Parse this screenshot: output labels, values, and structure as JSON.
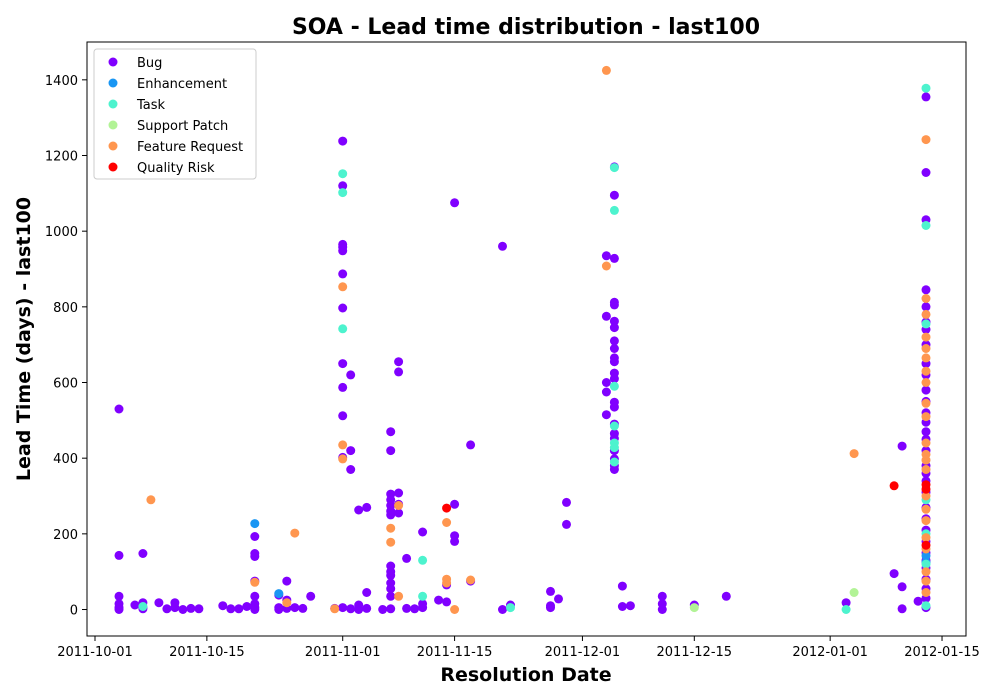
{
  "chart_data": {
    "type": "scatter",
    "title": "SOA - Lead time distribution - last100",
    "xlabel": "Resolution Date",
    "ylabel": "Lead Time (days) - last100",
    "x_type": "date",
    "xlim": [
      "2011-09-30",
      "2012-01-18"
    ],
    "ylim": [
      -70,
      1500
    ],
    "x_ticks": [
      "2011-10-01",
      "2011-10-15",
      "2011-11-01",
      "2011-11-15",
      "2011-12-01",
      "2011-12-15",
      "2012-01-01",
      "2012-01-15"
    ],
    "y_ticks": [
      0,
      200,
      400,
      600,
      800,
      1000,
      1200,
      1400
    ],
    "legend_position": "upper-left",
    "grid": false,
    "series": [
      {
        "name": "Bug",
        "color": "#8000ff",
        "points": [
          [
            "2011-10-04",
            530
          ],
          [
            "2011-10-04",
            143
          ],
          [
            "2011-10-04",
            35
          ],
          [
            "2011-10-04",
            15
          ],
          [
            "2011-10-04",
            5
          ],
          [
            "2011-10-04",
            0
          ],
          [
            "2011-10-06",
            12
          ],
          [
            "2011-10-07",
            148
          ],
          [
            "2011-10-07",
            18
          ],
          [
            "2011-10-07",
            5
          ],
          [
            "2011-10-07",
            2
          ],
          [
            "2011-10-09",
            18
          ],
          [
            "2011-10-10",
            2
          ],
          [
            "2011-10-11",
            18
          ],
          [
            "2011-10-11",
            5
          ],
          [
            "2011-10-12",
            0
          ],
          [
            "2011-10-13",
            3
          ],
          [
            "2011-10-14",
            2
          ],
          [
            "2011-10-17",
            10
          ],
          [
            "2011-10-18",
            2
          ],
          [
            "2011-10-19",
            2
          ],
          [
            "2011-10-20",
            8
          ],
          [
            "2011-10-21",
            193
          ],
          [
            "2011-10-21",
            148
          ],
          [
            "2011-10-21",
            140
          ],
          [
            "2011-10-21",
            75
          ],
          [
            "2011-10-21",
            35
          ],
          [
            "2011-10-21",
            15
          ],
          [
            "2011-10-21",
            5
          ],
          [
            "2011-10-21",
            0
          ],
          [
            "2011-10-24",
            38
          ],
          [
            "2011-10-24",
            5
          ],
          [
            "2011-10-24",
            0
          ],
          [
            "2011-10-25",
            75
          ],
          [
            "2011-10-25",
            25
          ],
          [
            "2011-10-25",
            3
          ],
          [
            "2011-10-26",
            5
          ],
          [
            "2011-10-27",
            3
          ],
          [
            "2011-10-28",
            35
          ],
          [
            "2011-10-31",
            3
          ],
          [
            "2011-11-01",
            5
          ],
          [
            "2011-11-01",
            1238
          ],
          [
            "2011-11-01",
            1120
          ],
          [
            "2011-11-01",
            965
          ],
          [
            "2011-11-01",
            958
          ],
          [
            "2011-11-01",
            948
          ],
          [
            "2011-11-01",
            887
          ],
          [
            "2011-11-01",
            797
          ],
          [
            "2011-11-01",
            650
          ],
          [
            "2011-11-01",
            587
          ],
          [
            "2011-11-01",
            512
          ],
          [
            "2011-11-01",
            402
          ],
          [
            "2011-11-02",
            420
          ],
          [
            "2011-11-02",
            620
          ],
          [
            "2011-11-02",
            370
          ],
          [
            "2011-11-02",
            2
          ],
          [
            "2011-11-03",
            263
          ],
          [
            "2011-11-03",
            12
          ],
          [
            "2011-11-03",
            0
          ],
          [
            "2011-11-04",
            270
          ],
          [
            "2011-11-04",
            3
          ],
          [
            "2011-11-04",
            45
          ],
          [
            "2011-11-06",
            0
          ],
          [
            "2011-11-07",
            470
          ],
          [
            "2011-11-07",
            420
          ],
          [
            "2011-11-07",
            305
          ],
          [
            "2011-11-07",
            290
          ],
          [
            "2011-11-07",
            275
          ],
          [
            "2011-11-07",
            260
          ],
          [
            "2011-11-07",
            250
          ],
          [
            "2011-11-07",
            115
          ],
          [
            "2011-11-07",
            100
          ],
          [
            "2011-11-07",
            90
          ],
          [
            "2011-11-07",
            70
          ],
          [
            "2011-11-07",
            55
          ],
          [
            "2011-11-07",
            35
          ],
          [
            "2011-11-07",
            2
          ],
          [
            "2011-11-08",
            308
          ],
          [
            "2011-11-08",
            255
          ],
          [
            "2011-11-08",
            655
          ],
          [
            "2011-11-08",
            628
          ],
          [
            "2011-11-08",
            278
          ],
          [
            "2011-11-09",
            135
          ],
          [
            "2011-11-09",
            3
          ],
          [
            "2011-11-10",
            2
          ],
          [
            "2011-11-11",
            15
          ],
          [
            "2011-11-11",
            5
          ],
          [
            "2011-11-11",
            205
          ],
          [
            "2011-11-13",
            25
          ],
          [
            "2011-11-14",
            20
          ],
          [
            "2011-11-14",
            65
          ],
          [
            "2011-11-15",
            1075
          ],
          [
            "2011-11-15",
            278
          ],
          [
            "2011-11-15",
            195
          ],
          [
            "2011-11-15",
            180
          ],
          [
            "2011-11-17",
            435
          ],
          [
            "2011-11-17",
            75
          ],
          [
            "2011-11-21",
            960
          ],
          [
            "2011-11-21",
            0
          ],
          [
            "2011-11-22",
            12
          ],
          [
            "2011-11-27",
            48
          ],
          [
            "2011-11-27",
            10
          ],
          [
            "2011-11-27",
            5
          ],
          [
            "2011-11-28",
            28
          ],
          [
            "2011-11-29",
            283
          ],
          [
            "2011-11-29",
            225
          ],
          [
            "2011-12-04",
            935
          ],
          [
            "2011-12-04",
            775
          ],
          [
            "2011-12-04",
            600
          ],
          [
            "2011-12-04",
            575
          ],
          [
            "2011-12-04",
            515
          ],
          [
            "2011-12-05",
            1170
          ],
          [
            "2011-12-05",
            1095
          ],
          [
            "2011-12-05",
            928
          ],
          [
            "2011-12-05",
            812
          ],
          [
            "2011-12-05",
            805
          ],
          [
            "2011-12-05",
            762
          ],
          [
            "2011-12-05",
            745
          ],
          [
            "2011-12-05",
            710
          ],
          [
            "2011-12-05",
            690
          ],
          [
            "2011-12-05",
            665
          ],
          [
            "2011-12-05",
            655
          ],
          [
            "2011-12-05",
            625
          ],
          [
            "2011-12-05",
            610
          ],
          [
            "2011-12-05",
            548
          ],
          [
            "2011-12-05",
            535
          ],
          [
            "2011-12-05",
            490
          ],
          [
            "2011-12-05",
            465
          ],
          [
            "2011-12-05",
            452
          ],
          [
            "2011-12-05",
            420
          ],
          [
            "2011-12-05",
            398
          ],
          [
            "2011-12-05",
            380
          ],
          [
            "2011-12-05",
            370
          ],
          [
            "2011-12-06",
            62
          ],
          [
            "2011-12-06",
            8
          ],
          [
            "2011-12-07",
            10
          ],
          [
            "2011-12-11",
            35
          ],
          [
            "2011-12-11",
            15
          ],
          [
            "2011-12-11",
            0
          ],
          [
            "2011-12-15",
            12
          ],
          [
            "2011-12-19",
            35
          ],
          [
            "2012-01-03",
            18
          ],
          [
            "2012-01-09",
            95
          ],
          [
            "2012-01-10",
            432
          ],
          [
            "2012-01-10",
            60
          ],
          [
            "2012-01-10",
            2
          ],
          [
            "2012-01-12",
            22
          ],
          [
            "2012-01-13",
            1355
          ],
          [
            "2012-01-13",
            1155
          ],
          [
            "2012-01-13",
            1030
          ],
          [
            "2012-01-13",
            845
          ],
          [
            "2012-01-13",
            800
          ],
          [
            "2012-01-13",
            760
          ],
          [
            "2012-01-13",
            740
          ],
          [
            "2012-01-13",
            700
          ],
          [
            "2012-01-13",
            650
          ],
          [
            "2012-01-13",
            620
          ],
          [
            "2012-01-13",
            580
          ],
          [
            "2012-01-13",
            550
          ],
          [
            "2012-01-13",
            520
          ],
          [
            "2012-01-13",
            495
          ],
          [
            "2012-01-13",
            470
          ],
          [
            "2012-01-13",
            450
          ],
          [
            "2012-01-13",
            420
          ],
          [
            "2012-01-13",
            380
          ],
          [
            "2012-01-13",
            360
          ],
          [
            "2012-01-13",
            340
          ],
          [
            "2012-01-13",
            310
          ],
          [
            "2012-01-13",
            270
          ],
          [
            "2012-01-13",
            240
          ],
          [
            "2012-01-13",
            210
          ],
          [
            "2012-01-13",
            180
          ],
          [
            "2012-01-13",
            150
          ],
          [
            "2012-01-13",
            130
          ],
          [
            "2012-01-13",
            110
          ],
          [
            "2012-01-13",
            80
          ],
          [
            "2012-01-13",
            55
          ],
          [
            "2012-01-13",
            30
          ],
          [
            "2012-01-13",
            5
          ]
        ]
      },
      {
        "name": "Enhancement",
        "color": "#1996f3",
        "points": [
          [
            "2011-10-21",
            227
          ],
          [
            "2011-10-24",
            42
          ],
          [
            "2012-01-13",
            142
          ],
          [
            "2012-01-13",
            125
          ]
        ]
      },
      {
        "name": "Task",
        "color": "#4df3ce",
        "points": [
          [
            "2011-10-07",
            8
          ],
          [
            "2011-11-01",
            1152
          ],
          [
            "2011-11-01",
            1102
          ],
          [
            "2011-11-01",
            742
          ],
          [
            "2011-11-11",
            130
          ],
          [
            "2011-11-11",
            35
          ],
          [
            "2011-11-22",
            5
          ],
          [
            "2011-12-05",
            1168
          ],
          [
            "2011-12-05",
            1055
          ],
          [
            "2011-12-05",
            590
          ],
          [
            "2011-12-05",
            485
          ],
          [
            "2011-12-05",
            440
          ],
          [
            "2011-12-05",
            428
          ],
          [
            "2011-12-05",
            390
          ],
          [
            "2012-01-03",
            0
          ],
          [
            "2012-01-13",
            1378
          ],
          [
            "2012-01-13",
            1015
          ],
          [
            "2012-01-13",
            755
          ],
          [
            "2012-01-13",
            290
          ],
          [
            "2012-01-13",
            200
          ],
          [
            "2012-01-13",
            120
          ],
          [
            "2012-01-13",
            10
          ]
        ]
      },
      {
        "name": "Support Patch",
        "color": "#b2f396",
        "points": [
          [
            "2011-12-15",
            5
          ],
          [
            "2012-01-04",
            45
          ]
        ]
      },
      {
        "name": "Feature Request",
        "color": "#ff964f",
        "points": [
          [
            "2011-10-08",
            290
          ],
          [
            "2011-10-21",
            72
          ],
          [
            "2011-10-25",
            18
          ],
          [
            "2011-10-26",
            202
          ],
          [
            "2011-10-31",
            2
          ],
          [
            "2011-11-01",
            853
          ],
          [
            "2011-11-01",
            435
          ],
          [
            "2011-11-01",
            398
          ],
          [
            "2011-11-07",
            215
          ],
          [
            "2011-11-07",
            178
          ],
          [
            "2011-11-08",
            275
          ],
          [
            "2011-11-08",
            35
          ],
          [
            "2011-11-14",
            230
          ],
          [
            "2011-11-14",
            80
          ],
          [
            "2011-11-14",
            70
          ],
          [
            "2011-11-15",
            0
          ],
          [
            "2011-11-17",
            78
          ],
          [
            "2011-12-04",
            1425
          ],
          [
            "2011-12-04",
            908
          ],
          [
            "2012-01-04",
            412
          ],
          [
            "2012-01-13",
            1242
          ],
          [
            "2012-01-13",
            822
          ],
          [
            "2012-01-13",
            780
          ],
          [
            "2012-01-13",
            720
          ],
          [
            "2012-01-13",
            690
          ],
          [
            "2012-01-13",
            665
          ],
          [
            "2012-01-13",
            630
          ],
          [
            "2012-01-13",
            600
          ],
          [
            "2012-01-13",
            545
          ],
          [
            "2012-01-13",
            510
          ],
          [
            "2012-01-13",
            440
          ],
          [
            "2012-01-13",
            410
          ],
          [
            "2012-01-13",
            395
          ],
          [
            "2012-01-13",
            370
          ],
          [
            "2012-01-13",
            300
          ],
          [
            "2012-01-13",
            265
          ],
          [
            "2012-01-13",
            235
          ],
          [
            "2012-01-13",
            190
          ],
          [
            "2012-01-13",
            160
          ],
          [
            "2012-01-13",
            100
          ],
          [
            "2012-01-13",
            75
          ],
          [
            "2012-01-13",
            45
          ]
        ]
      },
      {
        "name": "Quality Risk",
        "color": "#ff0000",
        "points": [
          [
            "2011-11-14",
            268
          ],
          [
            "2012-01-09",
            327
          ],
          [
            "2012-01-13",
            330
          ],
          [
            "2012-01-13",
            318
          ],
          [
            "2012-01-13",
            170
          ]
        ]
      }
    ]
  }
}
